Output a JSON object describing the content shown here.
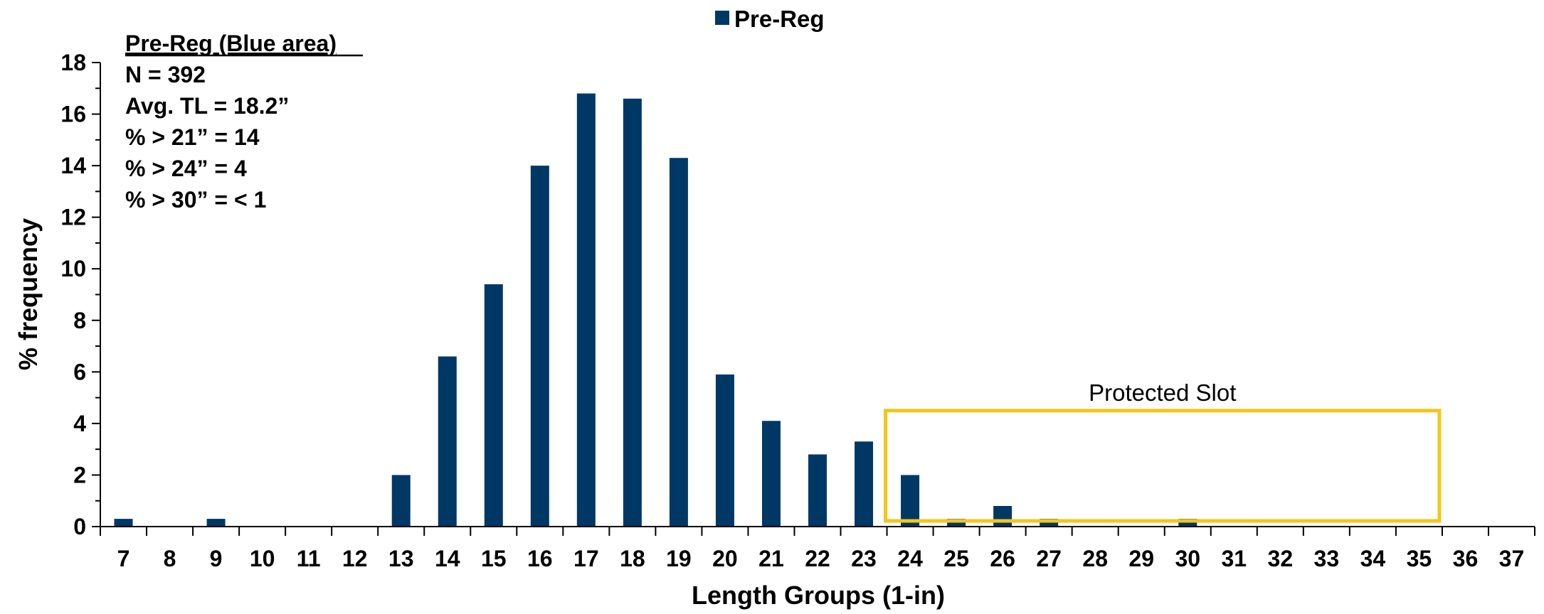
{
  "chart_data": {
    "type": "bar",
    "xlabel": "Length Groups (1-in)",
    "ylabel": "% frequency",
    "ylim": [
      0,
      18
    ],
    "yticks": [
      0,
      2,
      4,
      6,
      8,
      10,
      12,
      14,
      16,
      18
    ],
    "grid": false,
    "legend_position": "top-center",
    "categories": [
      "7",
      "8",
      "9",
      "10",
      "11",
      "12",
      "13",
      "14",
      "15",
      "16",
      "17",
      "18",
      "19",
      "20",
      "21",
      "22",
      "23",
      "24",
      "25",
      "26",
      "27",
      "28",
      "29",
      "30",
      "31",
      "32",
      "33",
      "34",
      "35",
      "36",
      "37"
    ],
    "series": [
      {
        "name": "Pre-Reg",
        "color": "#003865",
        "values": [
          0.3,
          0,
          0.3,
          0,
          0,
          0,
          2.0,
          6.6,
          9.4,
          14.0,
          16.8,
          16.6,
          14.3,
          5.9,
          4.1,
          2.8,
          3.3,
          2.0,
          0.3,
          0.8,
          0.3,
          0,
          0,
          0.3,
          0,
          0,
          0,
          0,
          0,
          0,
          0
        ]
      }
    ],
    "annotations": {
      "stats": {
        "heading": "Pre-Reg (Blue area)",
        "lines": [
          "N = 392",
          "Avg. TL = 18.2”",
          "% > 21” = 14",
          "% > 24” = 4",
          "% > 30” = < 1"
        ]
      },
      "protected_slot": {
        "label": "Protected Slot",
        "x_from": "24",
        "x_to": "35",
        "y_top": 4.5,
        "color": "#F5C518"
      }
    }
  }
}
